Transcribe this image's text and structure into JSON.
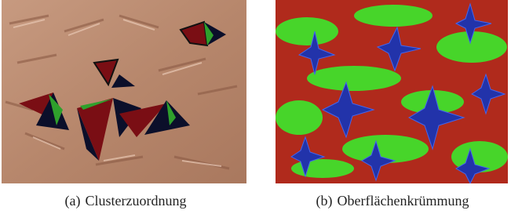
{
  "figures": [
    {
      "label": "(a)",
      "caption": "Clusterzuordnung"
    },
    {
      "label": "(b)",
      "caption": "Oberflächenkrümmung"
    }
  ]
}
